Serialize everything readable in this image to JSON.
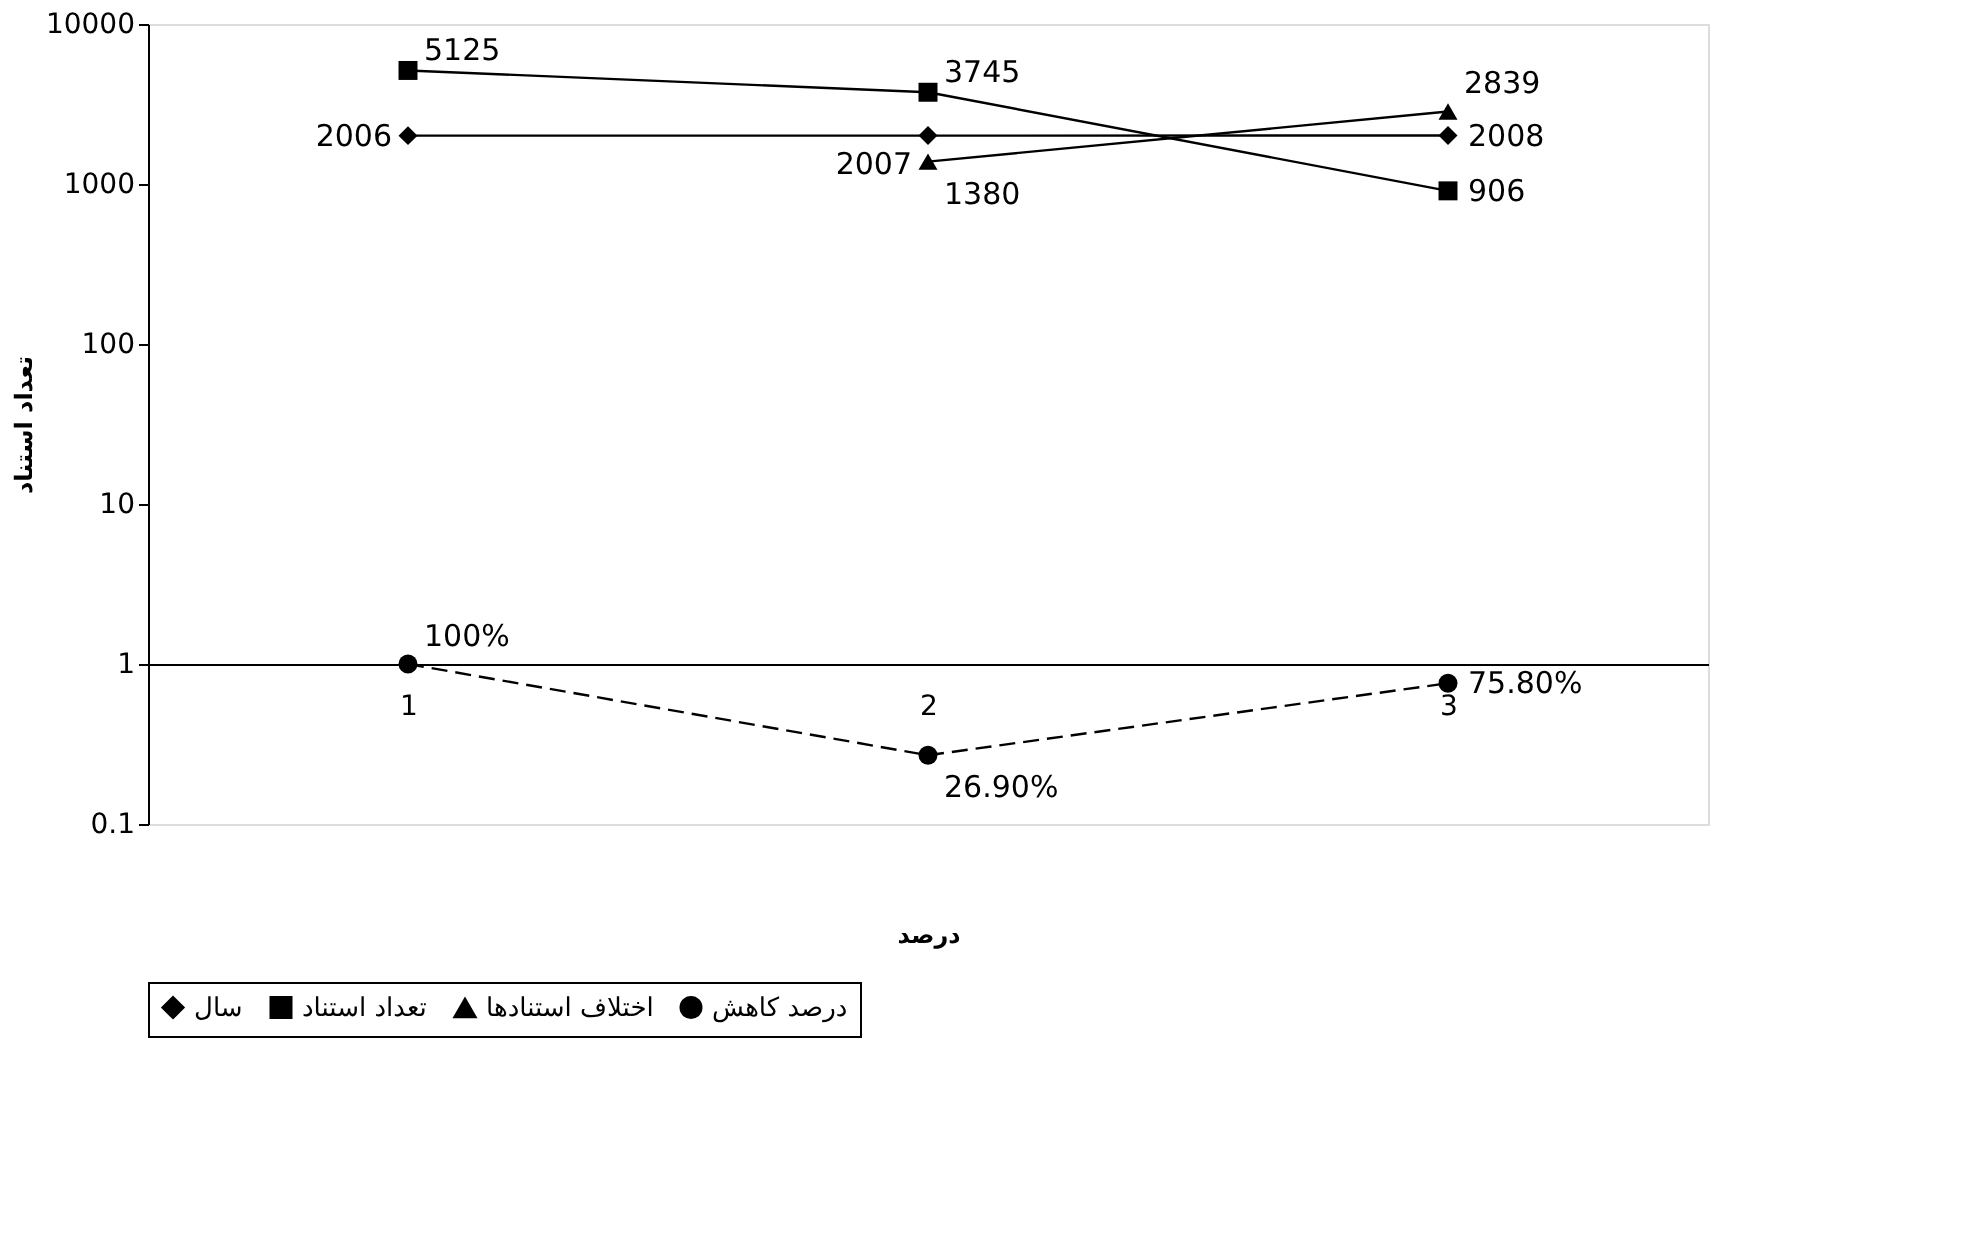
{
  "chart_data": {
    "type": "line",
    "xlabel": "درصد",
    "ylabel": "تعداد استناد",
    "categories": [
      "1",
      "2",
      "3"
    ],
    "log": "y",
    "ylim": [
      0.1,
      10000
    ],
    "yticks": [
      0.1,
      1,
      10,
      100,
      1000,
      10000
    ],
    "grid": false,
    "legend": "bottom",
    "series": [
      {
        "name": "سال",
        "color": "#000000",
        "marker": "diamond",
        "line_style": "solid",
        "values": [
          2006,
          2007,
          2008
        ],
        "value_labels": [
          "2006",
          "2007",
          "2008"
        ]
      },
      {
        "name": "تعداد استناد",
        "color": "#000000",
        "marker": "square",
        "line_style": "solid",
        "values": [
          5125,
          3745,
          906
        ],
        "value_labels": [
          "5125",
          "3745",
          "906"
        ]
      },
      {
        "name": "اختلاف استنادها",
        "color": "#000000",
        "marker": "triangle",
        "line_style": "solid",
        "values": [
          null,
          1380,
          2839
        ],
        "value_labels": [
          null,
          "1380",
          "2839"
        ]
      },
      {
        "name": "درصد کاهش",
        "color": "#000000",
        "marker": "circle",
        "line_style": "dashed",
        "values": [
          1,
          0.269,
          0.758
        ],
        "value_labels": [
          "100%",
          "26.90%",
          "75.80%"
        ]
      }
    ]
  }
}
